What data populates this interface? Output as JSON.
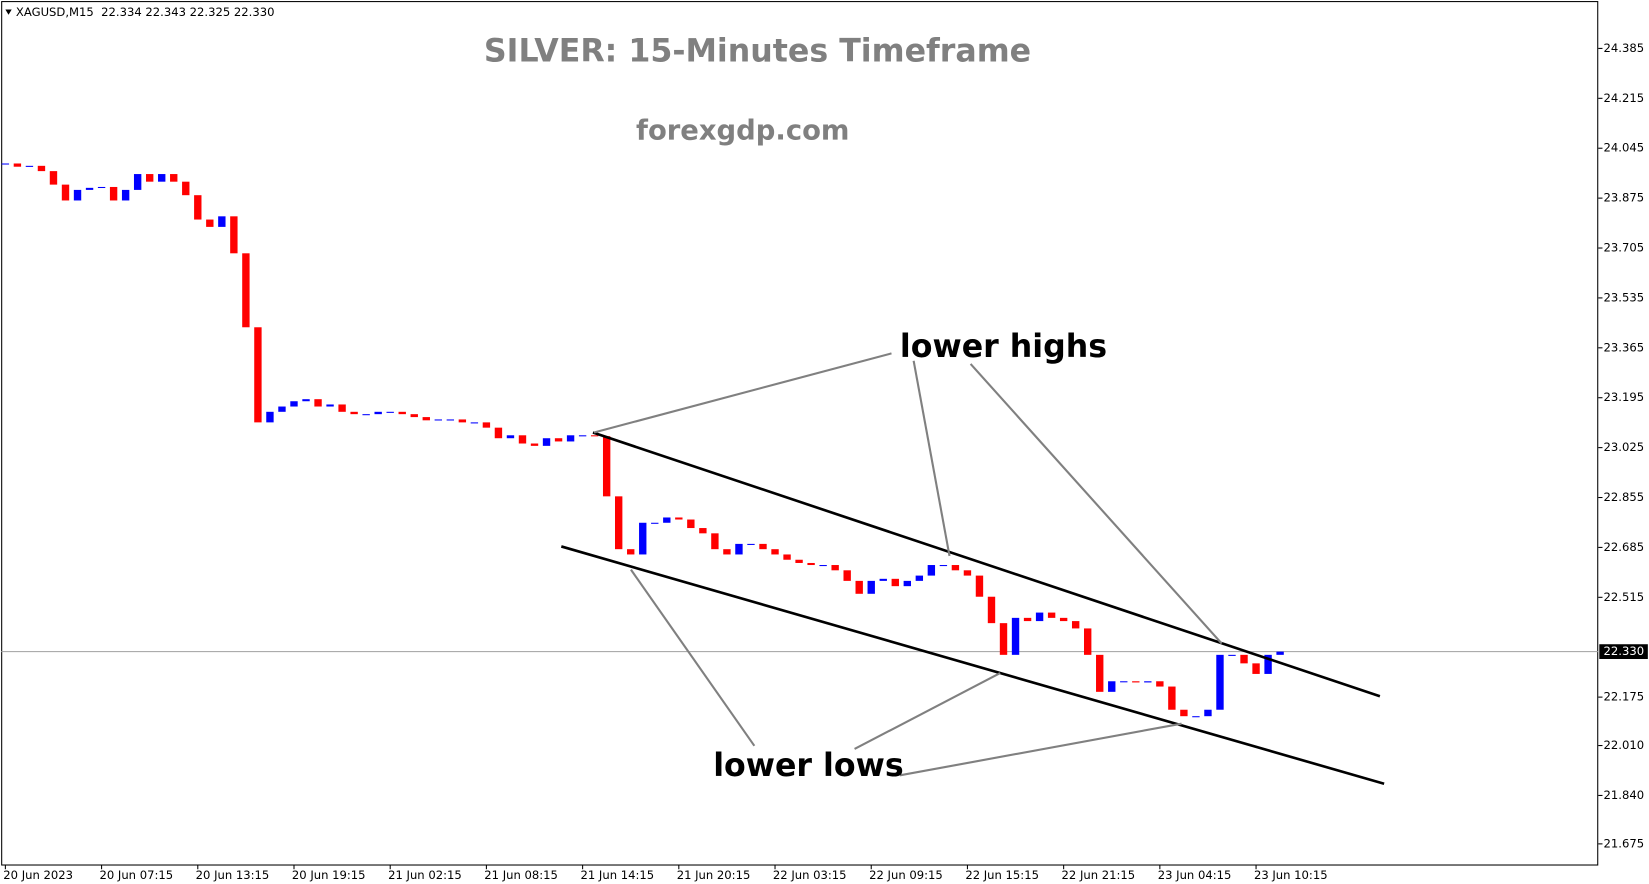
{
  "chart_data": {
    "type": "candlestick",
    "header": "XAGUSD,M15  22.334 22.343 22.325 22.330",
    "title": "SILVER: 15-Minutes Timeframe",
    "subtitle": "forexgdp.com",
    "annotations": [
      "lower highs",
      "lower lows"
    ],
    "categories": [
      "20 Jun 2023",
      null,
      null,
      null,
      null,
      null,
      null,
      null,
      "20 Jun 07:15",
      null,
      null,
      null,
      null,
      null,
      null,
      null,
      "20 Jun 13:15",
      null,
      null,
      null,
      null,
      null,
      null,
      null,
      "20 Jun 19:15",
      null,
      null,
      null,
      null,
      null,
      null,
      null,
      "21 Jun 02:15",
      null,
      null,
      null,
      null,
      null,
      null,
      null,
      "21 Jun 08:15",
      null,
      null,
      null,
      null,
      null,
      null,
      null,
      "21 Jun 14:15",
      null,
      null,
      null,
      null,
      null,
      null,
      null,
      "21 Jun 20:15",
      null,
      null,
      null,
      null,
      null,
      null,
      null,
      "22 Jun 03:15",
      null,
      null,
      null,
      null,
      null,
      null,
      null,
      "22 Jun 09:15",
      null,
      null,
      null,
      null,
      null,
      null,
      null,
      "22 Jun 15:15",
      null,
      null,
      null,
      null,
      null,
      null,
      null,
      "22 Jun 21:15",
      null,
      null,
      null,
      null,
      null,
      null,
      null,
      "23 Jun 04:15",
      null,
      null,
      null,
      null,
      null,
      null,
      null,
      "23 Jun 10:15",
      null,
      null
    ],
    "values": [
      23.993,
      23.982,
      23.985,
      23.967,
      23.921,
      23.867,
      23.903,
      23.91,
      23.913,
      23.867,
      23.903,
      23.957,
      23.931,
      23.957,
      23.931,
      23.885,
      23.802,
      23.777,
      23.813,
      23.687,
      23.435,
      23.111,
      23.147,
      23.165,
      23.183,
      23.19,
      23.165,
      23.172,
      23.147,
      23.139,
      23.139,
      23.147,
      23.147,
      23.139,
      23.129,
      23.118,
      23.121,
      23.121,
      23.111,
      23.111,
      23.093,
      23.057,
      23.067,
      23.039,
      23.031,
      23.057,
      23.046,
      23.067,
      23.067,
      23.064,
      22.859,
      22.679,
      22.661,
      22.769,
      22.769,
      22.787,
      22.78,
      22.751,
      22.733,
      22.679,
      22.661,
      22.697,
      22.697,
      22.679,
      22.661,
      22.643,
      22.632,
      22.625,
      22.625,
      22.607,
      22.571,
      22.527,
      22.571,
      22.578,
      22.553,
      22.571,
      22.589,
      22.625,
      22.625,
      22.607,
      22.589,
      22.517,
      22.427,
      22.319,
      22.445,
      22.434,
      22.463,
      22.445,
      22.434,
      22.409,
      22.319,
      22.193,
      22.229,
      22.229,
      22.225,
      22.229,
      22.211,
      22.132,
      22.11,
      22.11,
      22.132,
      22.319,
      22.319,
      22.29,
      22.254,
      22.319,
      22.33
    ],
    "up_color": "#0000ff",
    "down_color": "#ff0000",
    "ylim": [
      21.603,
      24.532
    ],
    "yticks": [
      24.385,
      24.215,
      24.045,
      23.875,
      23.705,
      23.535,
      23.365,
      23.195,
      23.025,
      22.855,
      22.685,
      22.515,
      22.175,
      {
        "value": 22.01,
        "label": "22.010"
      },
      {
        "value": 21.84,
        "label": "21.840"
      },
      21.675
    ],
    "last_price": {
      "value": 22.33,
      "label": "22.330"
    }
  }
}
